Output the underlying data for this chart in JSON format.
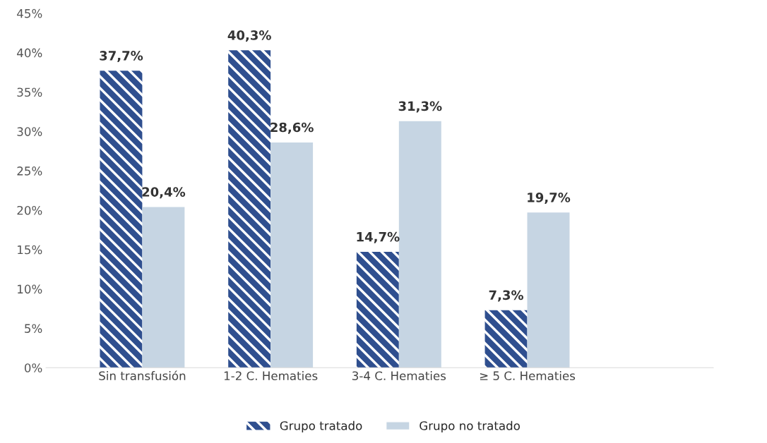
{
  "chart_data": {
    "type": "bar",
    "categories": [
      "Sin transfusión",
      "1-2 C. Hematies",
      "3-4 C. Hematies",
      "≥ 5 C. Hematies"
    ],
    "series": [
      {
        "name": "Grupo tratado",
        "color": "#2f4f8f",
        "values": [
          37.7,
          40.3,
          14.7,
          7.3
        ],
        "value_labels": [
          "37,7%",
          "40,3%",
          "14,7%",
          "7,3%"
        ]
      },
      {
        "name": "Grupo no tratado",
        "color": "#c6d5e3",
        "values": [
          20.4,
          28.6,
          31.3,
          19.7
        ],
        "value_labels": [
          "20,4%",
          "28,6%",
          "31,3%",
          "19,7%"
        ]
      }
    ],
    "ylim": [
      0,
      45
    ],
    "yticks": [
      {
        "value": 0,
        "label": "0%"
      },
      {
        "value": 5,
        "label": "5%"
      },
      {
        "value": 10,
        "label": "10%"
      },
      {
        "value": 15,
        "label": "15%"
      },
      {
        "value": 20,
        "label": "20%"
      },
      {
        "value": 25,
        "label": "25%"
      },
      {
        "value": 30,
        "label": "30%"
      },
      {
        "value": 35,
        "label": "35%"
      },
      {
        "value": 40,
        "label": "40%"
      },
      {
        "value": 45,
        "label": "45%"
      }
    ],
    "grid": false,
    "legend": "bottom"
  }
}
